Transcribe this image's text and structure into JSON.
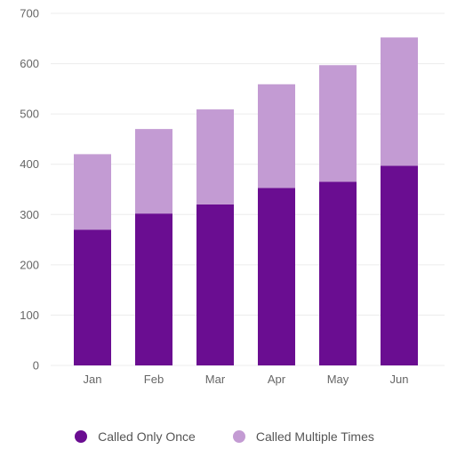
{
  "chart_data": {
    "type": "bar",
    "stacked": true,
    "categories": [
      "Jan",
      "Feb",
      "Mar",
      "Apr",
      "May",
      "Jun"
    ],
    "series": [
      {
        "name": "Called Only Once",
        "color": "#6a0d91",
        "values": [
          270,
          302,
          320,
          353,
          365,
          397
        ]
      },
      {
        "name": "Called Multiple Times",
        "color": "#c39bd3",
        "values": [
          150,
          168,
          189,
          206,
          232,
          255
        ]
      }
    ],
    "ylim": [
      0,
      700
    ],
    "yticks": [
      0,
      100,
      200,
      300,
      400,
      500,
      600,
      700
    ],
    "grid": true,
    "legend_position": "bottom"
  }
}
